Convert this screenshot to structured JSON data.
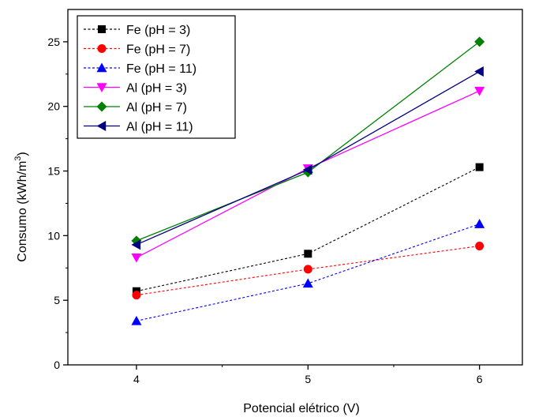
{
  "chart_data": {
    "type": "line",
    "title": "",
    "xlabel": "Potencial elétrico (V)",
    "ylabel_main": "Consumo (kWh/m",
    "ylabel_sup": "3",
    "ylabel_end": ")",
    "xlim": [
      3.6,
      6.25
    ],
    "ylim": [
      0,
      27.5
    ],
    "xticks": [
      4,
      5,
      6
    ],
    "yticks": [
      0,
      5,
      10,
      15,
      20,
      25
    ],
    "grid": false,
    "legend_position": "top-left",
    "series": [
      {
        "name": "Fe (pH = 3)",
        "x": [
          4,
          5,
          6
        ],
        "y": [
          5.7,
          8.6,
          15.3
        ],
        "color": "#000000",
        "marker": "square",
        "dashed": true
      },
      {
        "name": "Fe (pH = 7)",
        "x": [
          4,
          5,
          6
        ],
        "y": [
          5.4,
          7.4,
          9.2
        ],
        "color": "#ff0000",
        "marker": "circle",
        "dashed": true
      },
      {
        "name": "Fe (pH = 11)",
        "x": [
          4,
          5,
          6
        ],
        "y": [
          3.4,
          6.3,
          10.9
        ],
        "color": "#0000ff",
        "marker": "triangle-up",
        "dashed": true
      },
      {
        "name": "Al (pH = 3)",
        "x": [
          4,
          5,
          6
        ],
        "y": [
          8.3,
          15.2,
          21.2
        ],
        "color": "#ff00ff",
        "marker": "triangle-down",
        "dashed": false
      },
      {
        "name": "Al (pH = 7)",
        "x": [
          4,
          5,
          6
        ],
        "y": [
          9.6,
          14.9,
          25.0
        ],
        "color": "#008000",
        "marker": "diamond",
        "dashed": false
      },
      {
        "name": "Al (pH = 11)",
        "x": [
          4,
          5,
          6
        ],
        "y": [
          9.3,
          15.1,
          22.7
        ],
        "color": "#000080",
        "marker": "triangle-left",
        "dashed": false
      }
    ]
  }
}
